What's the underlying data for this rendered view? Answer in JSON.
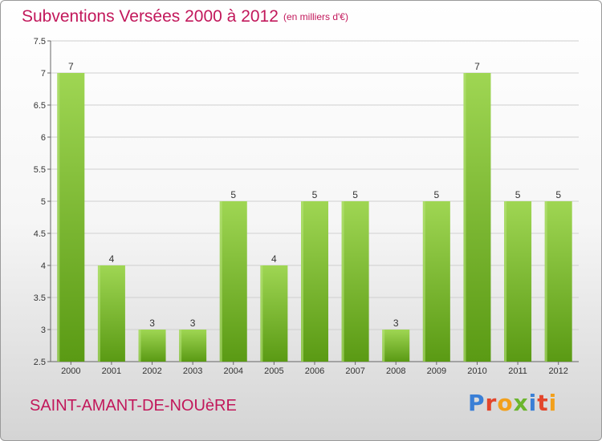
{
  "header": {
    "title": "Subventions Versées 2000 à 2012",
    "unit": "(en milliers d'€)"
  },
  "footer": {
    "commune": "SAINT-AMANT-DE-NOUèRE",
    "logo": "Proxiti"
  },
  "chart_data": {
    "type": "bar",
    "title": "Subventions Versées 2000 à 2012",
    "subtitle": "(en milliers d'€)",
    "xlabel": "",
    "ylabel": "",
    "categories": [
      "2000",
      "2001",
      "2002",
      "2003",
      "2004",
      "2005",
      "2006",
      "2007",
      "2008",
      "2009",
      "2010",
      "2011",
      "2012"
    ],
    "values": [
      7,
      4,
      3,
      3,
      5,
      4,
      5,
      5,
      3,
      5,
      7,
      5,
      5
    ],
    "ylim": [
      2.5,
      7.5
    ],
    "yticks": [
      "2.5",
      "3",
      "3.5",
      "4",
      "4.5",
      "5",
      "5.5",
      "6",
      "6.5",
      "7",
      "7.5"
    ],
    "grid": true,
    "bar_color": "#7cbf2e",
    "bar_color_light": "#9fd653",
    "bar_color_dark": "#5a9a14"
  },
  "colors": {
    "title": "#c2185b",
    "grid": "#cfcfcf",
    "axis": "#666666",
    "logo_letters": [
      "#3a7fd6",
      "#e3452b",
      "#f2a01c",
      "#6bb52d",
      "#3a7fd6",
      "#e3452b",
      "#f2a01c"
    ]
  }
}
